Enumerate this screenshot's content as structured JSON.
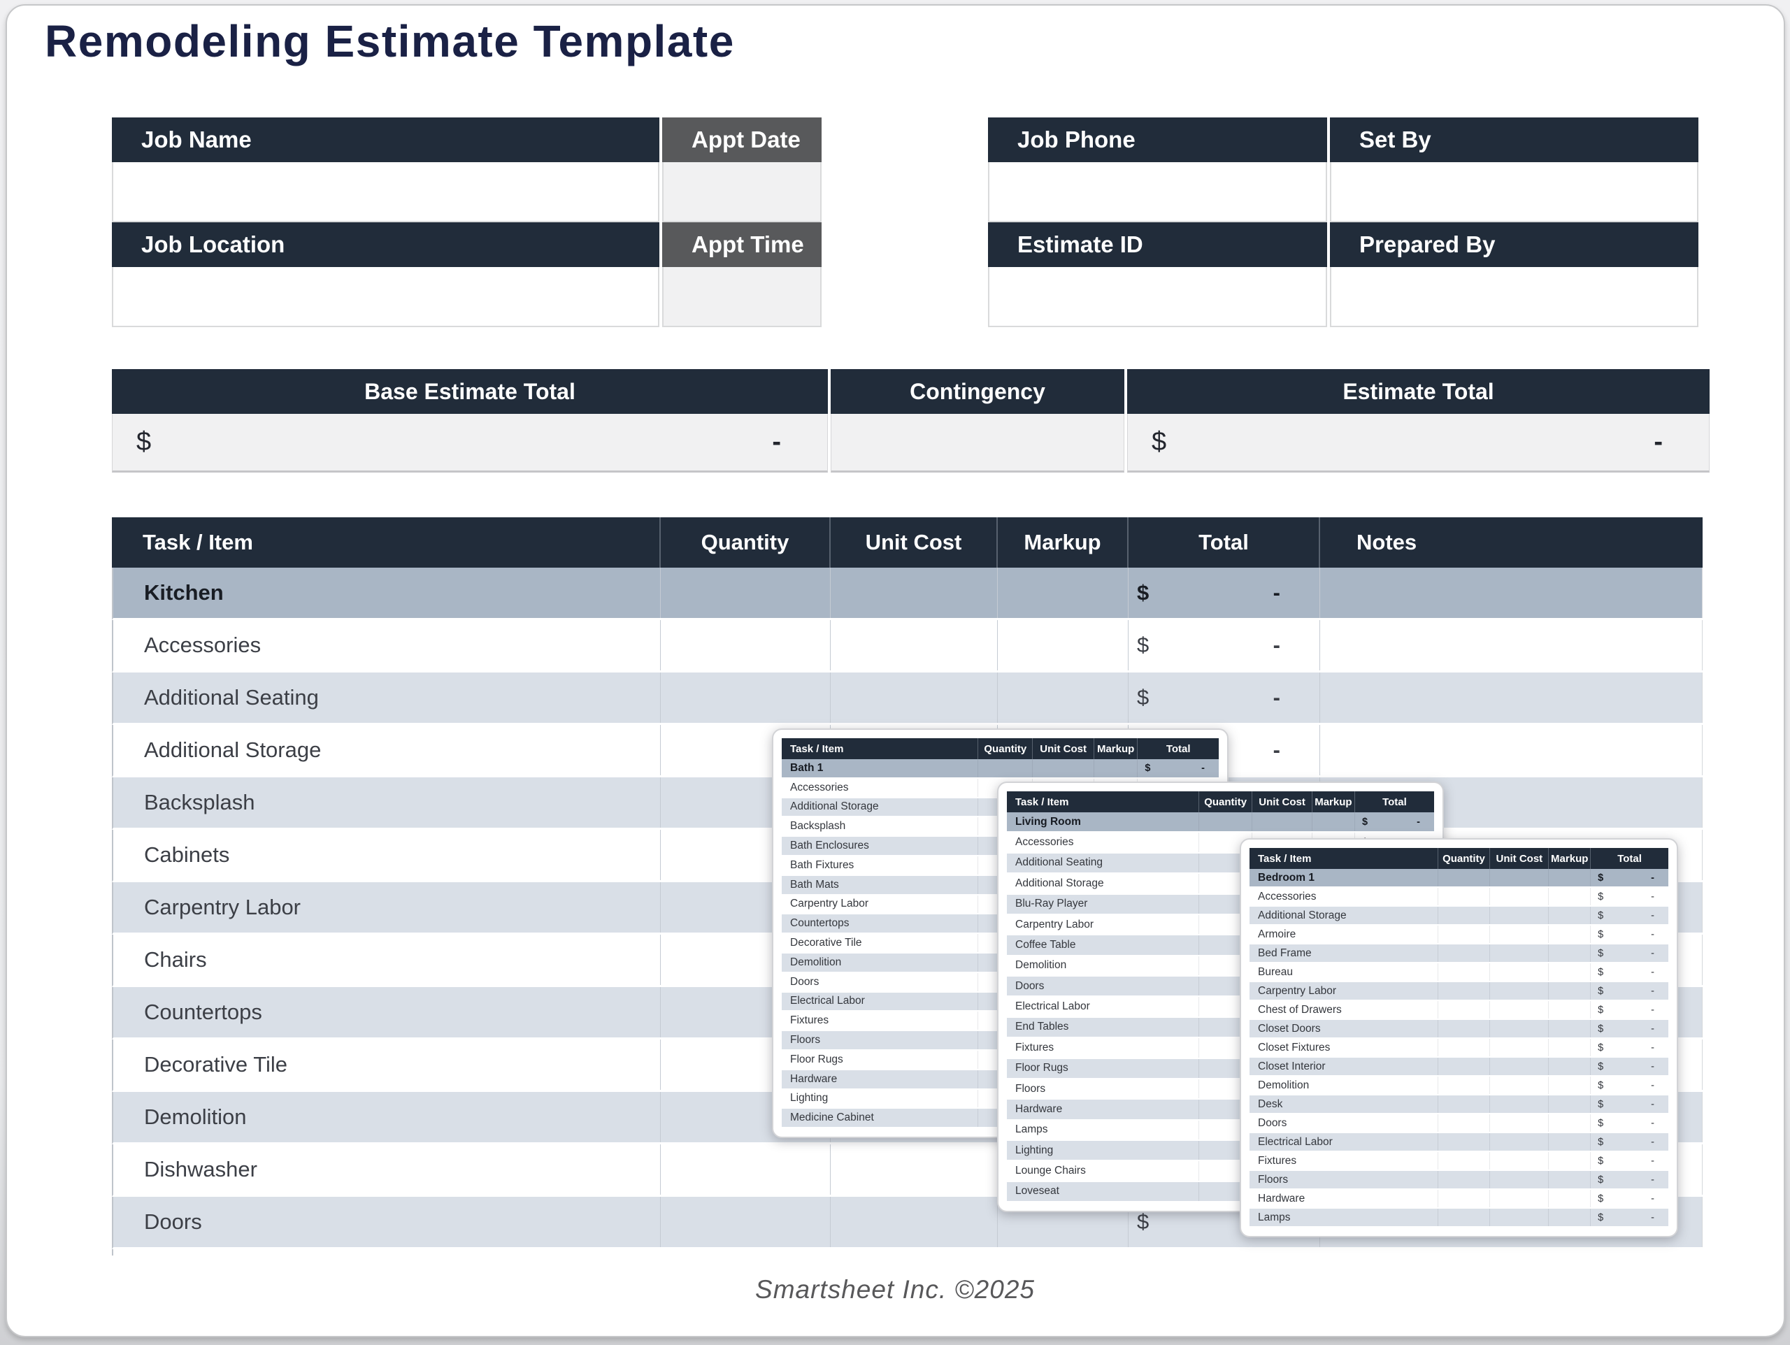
{
  "title": "Remodeling Estimate Template",
  "footer": {
    "text": "Smartsheet Inc. ©2025"
  },
  "colors": {
    "header_navy": "#212c3a",
    "gray_header": "#58595b",
    "section_row_blue": "#a9b6c5",
    "alt_row_blue": "#d9dfe7",
    "light_gray_cell": "#f1f1f2",
    "title_navy": "#1a2145"
  },
  "job_info": {
    "left": {
      "row1": {
        "header": "Job Name",
        "sub_header": "Appt Date",
        "value": "",
        "sub_value": ""
      },
      "row2": {
        "header": "Job Location",
        "sub_header": "Appt Time",
        "value": "",
        "sub_value": ""
      }
    },
    "right": {
      "row1": {
        "header": "Job Phone",
        "header2": "Set By",
        "value": "",
        "value2": ""
      },
      "row2": {
        "header": "Estimate ID",
        "header2": "Prepared By",
        "value": "",
        "value2": ""
      }
    }
  },
  "summary": {
    "base_estimate": {
      "label": "Base Estimate Total",
      "currency": "$",
      "amount": "-"
    },
    "contingency": {
      "label": "Contingency",
      "currency": "",
      "amount": ""
    },
    "estimate_total": {
      "label": "Estimate Total",
      "currency": "$",
      "amount": "-"
    }
  },
  "estimate_table": {
    "headers": [
      "Task / Item",
      "Quantity",
      "Unit Cost",
      "Markup",
      "Total",
      "Notes"
    ],
    "section": {
      "label": "Kitchen",
      "currency": "$",
      "amount": "-"
    },
    "rows": [
      {
        "label": "Accessories",
        "currency": "$",
        "amount": "-"
      },
      {
        "label": "Additional Seating",
        "currency": "$",
        "amount": "-"
      },
      {
        "label": "Additional Storage",
        "currency": "$",
        "amount": "-"
      },
      {
        "label": "Backsplash",
        "currency": "$",
        "amount": "-"
      },
      {
        "label": "Cabinets",
        "currency": "$",
        "amount": "-"
      },
      {
        "label": "Carpentry Labor",
        "currency": "$",
        "amount": "-"
      },
      {
        "label": "Chairs",
        "currency": "$",
        "amount": "-"
      },
      {
        "label": "Countertops",
        "currency": "$",
        "amount": "-"
      },
      {
        "label": "Decorative Tile",
        "currency": "$",
        "amount": "-"
      },
      {
        "label": "Demolition",
        "currency": "$",
        "amount": "-"
      },
      {
        "label": "Dishwasher",
        "currency": "$",
        "amount": "-"
      },
      {
        "label": "Doors",
        "currency": "$",
        "amount": "-"
      }
    ]
  },
  "popups": {
    "bath": {
      "headers": [
        "Task / Item",
        "Quantity",
        "Unit Cost",
        "Markup",
        "Total"
      ],
      "section": {
        "label": "Bath 1",
        "currency": "$",
        "amount": "-"
      },
      "items": [
        {
          "label": "Accessories",
          "currency": "$",
          "amount": "-"
        },
        {
          "label": "Additional Storage",
          "currency": "$",
          "amount": "-"
        },
        {
          "label": "Backsplash",
          "currency": "$",
          "amount": "-"
        },
        {
          "label": "Bath Enclosures",
          "currency": "$",
          "amount": "-"
        },
        {
          "label": "Bath Fixtures",
          "currency": "$",
          "amount": "-"
        },
        {
          "label": "Bath Mats",
          "currency": "$",
          "amount": "-"
        },
        {
          "label": "Carpentry Labor",
          "currency": "$",
          "amount": "-"
        },
        {
          "label": "Countertops",
          "currency": "$",
          "amount": "-"
        },
        {
          "label": "Decorative Tile",
          "currency": "$",
          "amount": "-"
        },
        {
          "label": "Demolition",
          "currency": "$",
          "amount": "-"
        },
        {
          "label": "Doors",
          "currency": "$",
          "amount": "-"
        },
        {
          "label": "Electrical Labor",
          "currency": "$",
          "amount": "-"
        },
        {
          "label": "Fixtures",
          "currency": "$",
          "amount": "-"
        },
        {
          "label": "Floors",
          "currency": "$",
          "amount": "-"
        },
        {
          "label": "Floor Rugs",
          "currency": "$",
          "amount": "-"
        },
        {
          "label": "Hardware",
          "currency": "$",
          "amount": "-"
        },
        {
          "label": "Lighting",
          "currency": "$",
          "amount": "-"
        },
        {
          "label": "Medicine Cabinet",
          "currency": "$",
          "amount": "-"
        }
      ]
    },
    "living_room": {
      "headers": [
        "Task / Item",
        "Quantity",
        "Unit Cost",
        "Markup",
        "Total"
      ],
      "section": {
        "label": "Living Room",
        "currency": "$",
        "amount": "-"
      },
      "items": [
        {
          "label": "Accessories",
          "currency": "$",
          "amount": "-"
        },
        {
          "label": "Additional Seating",
          "currency": "$",
          "amount": "-"
        },
        {
          "label": "Additional Storage",
          "currency": "$",
          "amount": "-"
        },
        {
          "label": "Blu-Ray Player",
          "currency": "$",
          "amount": "-"
        },
        {
          "label": "Carpentry Labor",
          "currency": "$",
          "amount": "-"
        },
        {
          "label": "Coffee Table",
          "currency": "$",
          "amount": "-"
        },
        {
          "label": "Demolition",
          "currency": "$",
          "amount": "-"
        },
        {
          "label": "Doors",
          "currency": "$",
          "amount": "-"
        },
        {
          "label": "Electrical Labor",
          "currency": "$",
          "amount": "-"
        },
        {
          "label": "End Tables",
          "currency": "$",
          "amount": "-"
        },
        {
          "label": "Fixtures",
          "currency": "$",
          "amount": "-"
        },
        {
          "label": "Floor Rugs",
          "currency": "$",
          "amount": "-"
        },
        {
          "label": "Floors",
          "currency": "$",
          "amount": "-"
        },
        {
          "label": "Hardware",
          "currency": "$",
          "amount": "-"
        },
        {
          "label": "Lamps",
          "currency": "$",
          "amount": "-"
        },
        {
          "label": "Lighting",
          "currency": "$",
          "amount": "-"
        },
        {
          "label": "Lounge Chairs",
          "currency": "$",
          "amount": "-"
        },
        {
          "label": "Loveseat",
          "currency": "$",
          "amount": "-"
        }
      ]
    },
    "bedroom": {
      "headers": [
        "Task / Item",
        "Quantity",
        "Unit Cost",
        "Markup",
        "Total"
      ],
      "section": {
        "label": "Bedroom 1",
        "currency": "$",
        "amount": "-"
      },
      "items": [
        {
          "label": "Accessories",
          "currency": "$",
          "amount": "-"
        },
        {
          "label": "Additional Storage",
          "currency": "$",
          "amount": "-"
        },
        {
          "label": "Armoire",
          "currency": "$",
          "amount": "-"
        },
        {
          "label": "Bed Frame",
          "currency": "$",
          "amount": "-"
        },
        {
          "label": "Bureau",
          "currency": "$",
          "amount": "-"
        },
        {
          "label": "Carpentry Labor",
          "currency": "$",
          "amount": "-"
        },
        {
          "label": "Chest of Drawers",
          "currency": "$",
          "amount": "-"
        },
        {
          "label": "Closet Doors",
          "currency": "$",
          "amount": "-"
        },
        {
          "label": "Closet Fixtures",
          "currency": "$",
          "amount": "-"
        },
        {
          "label": "Closet Interior",
          "currency": "$",
          "amount": "-"
        },
        {
          "label": "Demolition",
          "currency": "$",
          "amount": "-"
        },
        {
          "label": "Desk",
          "currency": "$",
          "amount": "-"
        },
        {
          "label": "Doors",
          "currency": "$",
          "amount": "-"
        },
        {
          "label": "Electrical Labor",
          "currency": "$",
          "amount": "-"
        },
        {
          "label": "Fixtures",
          "currency": "$",
          "amount": "-"
        },
        {
          "label": "Floors",
          "currency": "$",
          "amount": "-"
        },
        {
          "label": "Hardware",
          "currency": "$",
          "amount": "-"
        },
        {
          "label": "Lamps",
          "currency": "$",
          "amount": "-"
        }
      ]
    }
  }
}
